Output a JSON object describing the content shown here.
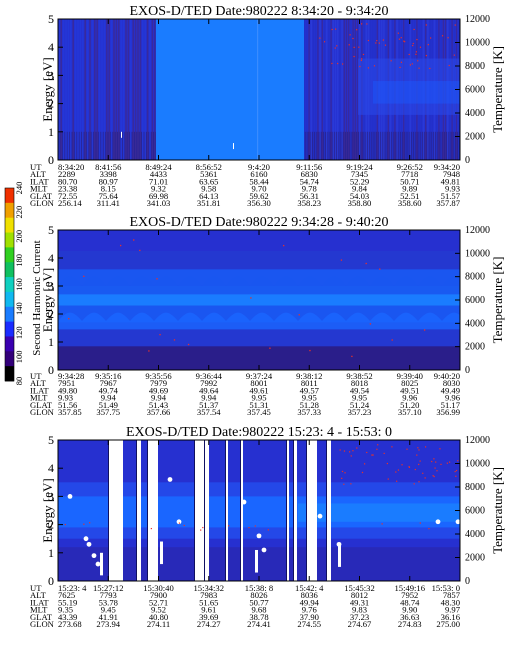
{
  "chart_data": [
    {
      "type": "heatmap",
      "title": "EXOS-D/TED   Date:980222  8:34:20 - 9:34:20",
      "ylabel": "Energy [eV]",
      "y2label": "Temperature [K]",
      "ylim": [
        0,
        5
      ],
      "y2lim": [
        0,
        12000
      ],
      "yticks": [
        "0",
        "1",
        "2",
        "3",
        "4",
        "5"
      ],
      "y2ticks": [
        "0",
        "2000",
        "4000",
        "6000",
        "8000",
        "10000",
        "12000"
      ],
      "orbit": {
        "UT": [
          "8:34:20",
          "8:41:56",
          "8:49:24",
          "8:56:52",
          "9:4:20",
          "9:11:56",
          "9:19:24",
          "9:26:52",
          "9:34:20"
        ],
        "ALT": [
          "2289",
          "3398",
          "4433",
          "5361",
          "6160",
          "6830",
          "7345",
          "7718",
          "7948"
        ],
        "ILAT": [
          "80.70",
          "80.97",
          "71.01",
          "63.65",
          "58.44",
          "54.74",
          "52.29",
          "50.71",
          "49.81"
        ],
        "MLT": [
          "23.38",
          "8.15",
          "9.32",
          "9.58",
          "9.70",
          "9.78",
          "9.84",
          "9.89",
          "9.93"
        ],
        "GLAT": [
          "72.55",
          "75.64",
          "69.98",
          "64.13",
          "59.62",
          "56.31",
          "54.03",
          "52.51",
          "51.57"
        ],
        "GLON": [
          "256.14",
          "311.41",
          "341.03",
          "351.81",
          "356.30",
          "358.23",
          "358.80",
          "358.60",
          "357.87"
        ]
      }
    },
    {
      "type": "heatmap",
      "title": "EXOS-D/TED   Date:980222  9:34:28 - 9:40:20",
      "ylabel": "Energy [eV]",
      "y2label": "Temperature [K]",
      "ylim": [
        0,
        5
      ],
      "y2lim": [
        0,
        12000
      ],
      "yticks": [
        "0",
        "1",
        "2",
        "3",
        "4",
        "5"
      ],
      "y2ticks": [
        "0",
        "2000",
        "4000",
        "6000",
        "8000",
        "10000",
        "12000"
      ],
      "colorbar": {
        "label": "Second Harmonic Current",
        "ticks": [
          "80",
          "100",
          "120",
          "140",
          "160",
          "180",
          "200",
          "220",
          "240"
        ]
      },
      "orbit": {
        "UT": [
          "9:34:28",
          "9:35:16",
          "9:35:56",
          "9:36:44",
          "9:37:24",
          "9:38:12",
          "9:38:52",
          "9:39:40",
          "9:40:20"
        ],
        "ALT": [
          "7951",
          "7967",
          "7979",
          "7992",
          "8001",
          "8011",
          "8018",
          "8025",
          "8030"
        ],
        "ILAT": [
          "49.80",
          "49.74",
          "49.69",
          "49.64",
          "49.61",
          "49.57",
          "49.54",
          "49.51",
          "49.49"
        ],
        "MLT": [
          "9.93",
          "9.94",
          "9.94",
          "9.94",
          "9.95",
          "9.95",
          "9.95",
          "9.96",
          "9.96"
        ],
        "GLAT": [
          "51.56",
          "51.49",
          "51.43",
          "51.37",
          "51.31",
          "51.28",
          "51.24",
          "51.20",
          "51.17"
        ],
        "GLON": [
          "357.85",
          "357.75",
          "357.66",
          "357.54",
          "357.45",
          "357.33",
          "357.23",
          "357.10",
          "356.99"
        ]
      }
    },
    {
      "type": "heatmap",
      "title": "EXOS-D/TED   Date:980222  15:23: 4 - 15:53: 0",
      "ylabel": "Energy [eV]",
      "y2label": "Temperature [K]",
      "ylim": [
        0,
        5
      ],
      "y2lim": [
        0,
        12000
      ],
      "yticks": [
        "0",
        "1",
        "2",
        "3",
        "4",
        "5"
      ],
      "y2ticks": [
        "0",
        "2000",
        "4000",
        "6000",
        "8000",
        "10000",
        "12000"
      ],
      "orbit": {
        "UT": [
          "15:23: 4",
          "15:27:12",
          "15:30:40",
          "15:34:32",
          "15:38: 8",
          "15:42: 4",
          "15:45:32",
          "15:49:16",
          "15:53: 0"
        ],
        "ALT": [
          "7625",
          "7793",
          "7900",
          "7983",
          "8026",
          "8036",
          "8012",
          "7952",
          "7857"
        ],
        "ILAT": [
          "55.19",
          "53.78",
          "52.71",
          "51.65",
          "50.77",
          "49.94",
          "49.31",
          "48.74",
          "48.30"
        ],
        "MLT": [
          "9.35",
          "9.45",
          "9.52",
          "9.61",
          "9.68",
          "9.76",
          "9.83",
          "9.90",
          "9.97"
        ],
        "GLAT": [
          "43.39",
          "41.91",
          "40.80",
          "39.69",
          "38.78",
          "37.90",
          "37.23",
          "36.63",
          "36.16"
        ],
        "GLON": [
          "273.68",
          "273.94",
          "274.11",
          "274.27",
          "274.41",
          "274.55",
          "274.67",
          "274.83",
          "275.00"
        ]
      }
    }
  ],
  "colors": {
    "bg_blue": "#2630d0",
    "mid_blue": "#1060ff",
    "bright_blue": "#1a7cff",
    "dark_band": "#2a1e7a",
    "red_dot": "#e8302a",
    "colorbar": [
      "#000000",
      "#33007a",
      "#3a00b0",
      "#1a2cff",
      "#1a7cff",
      "#10b8f0",
      "#10d0c0",
      "#10c060",
      "#30d020",
      "#a0e000",
      "#f0e000",
      "#f0a000",
      "#f03000"
    ]
  },
  "orbit_labels": [
    "UT",
    "ALT",
    "ILAT",
    "MLT",
    "GLAT",
    "GLON"
  ]
}
